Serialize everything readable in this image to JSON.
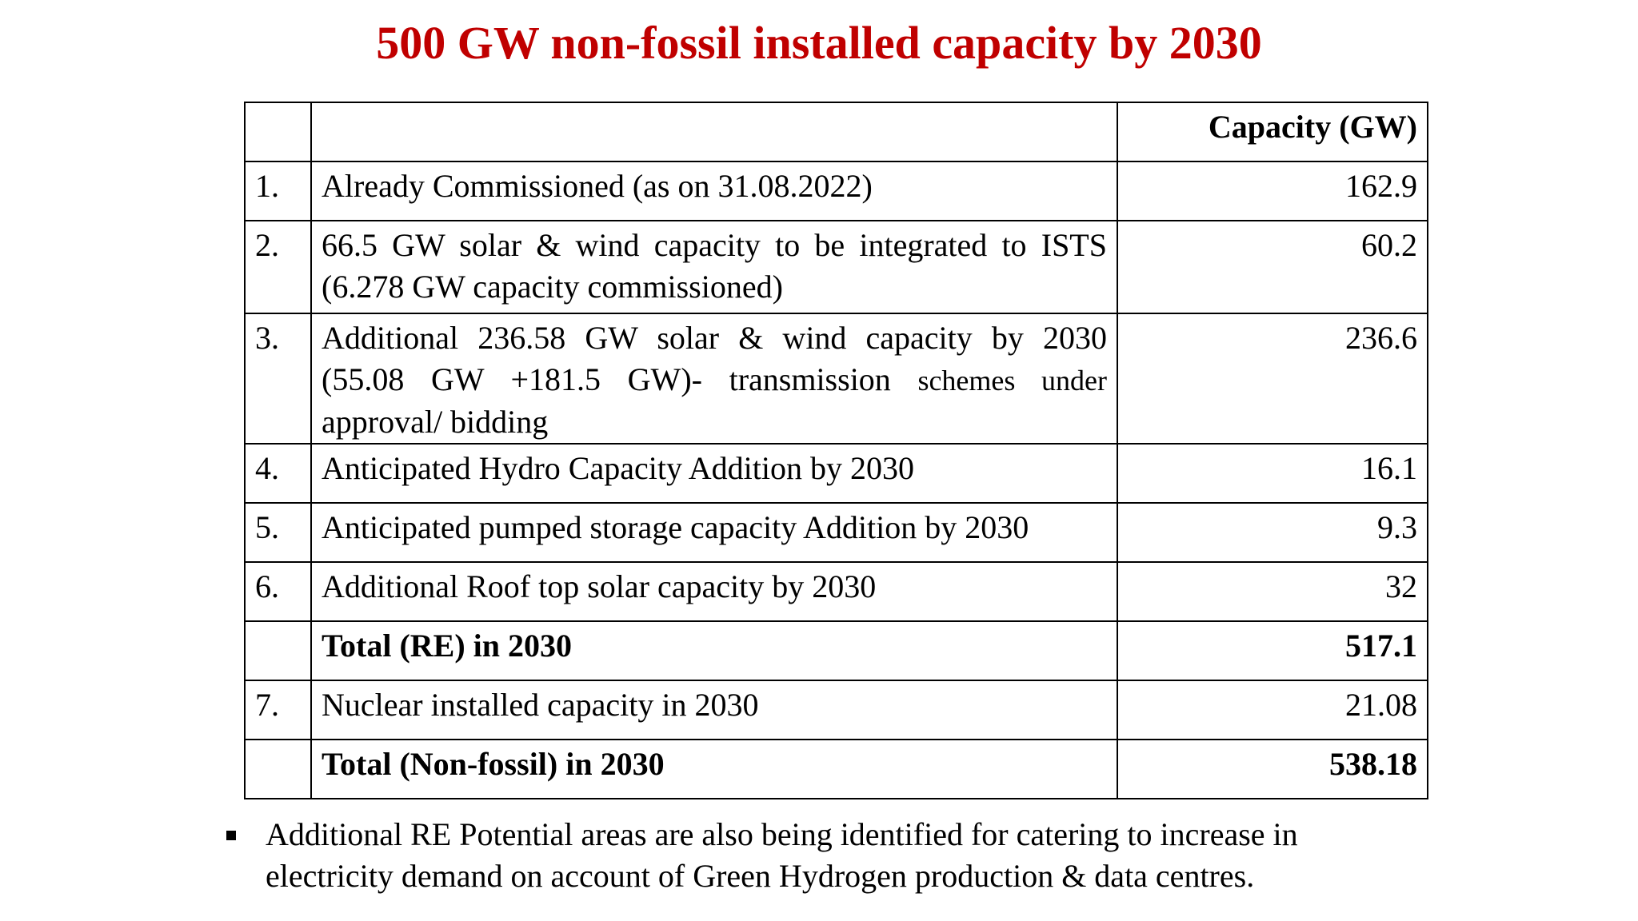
{
  "title": "500 GW non-fossil installed capacity by 2030",
  "table": {
    "header": {
      "num": "",
      "desc": "",
      "value": "Capacity (GW)"
    },
    "rows": [
      {
        "num": "1.",
        "desc_lines": [
          "Already Commissioned (as on 31.08.2022)"
        ],
        "value": "162.9"
      },
      {
        "num": "2.",
        "desc_lines": [
          "66.5 GW solar & wind capacity to be integrated to ISTS",
          "(6.278 GW capacity commissioned)"
        ],
        "value": "60.2"
      },
      {
        "num": "3.",
        "desc_lines": [
          "Additional 236.58 GW solar & wind capacity by 2030",
          "(55.08 GW +181.5 GW)- transmission",
          "schemes under",
          "approval/ bidding"
        ],
        "value": "236.6"
      },
      {
        "num": "4.",
        "desc_lines": [
          "Anticipated Hydro Capacity Addition by 2030"
        ],
        "value": "16.1"
      },
      {
        "num": "5.",
        "desc_lines": [
          "Anticipated pumped storage capacity Addition by 2030"
        ],
        "value": "9.3"
      },
      {
        "num": "6.",
        "desc_lines": [
          "Additional Roof top solar capacity by 2030"
        ],
        "value": "32"
      },
      {
        "num": "",
        "desc_lines": [
          "Total (RE) in 2030"
        ],
        "value": "517.1"
      },
      {
        "num": "7.",
        "desc_lines": [
          "Nuclear installed capacity in 2030"
        ],
        "value": "21.08"
      },
      {
        "num": "",
        "desc_lines": [
          "Total (Non-fossil) in 2030"
        ],
        "value": "538.18"
      }
    ]
  },
  "footnote": {
    "bullet_icon": "square-bullet-icon",
    "lines": [
      "Additional RE Potential areas are also being identified for catering to increase in",
      "electricity demand on account of Green Hydrogen production & data centres."
    ]
  },
  "colors": {
    "title": "#c00000",
    "text": "#000000",
    "border": "#000000"
  }
}
